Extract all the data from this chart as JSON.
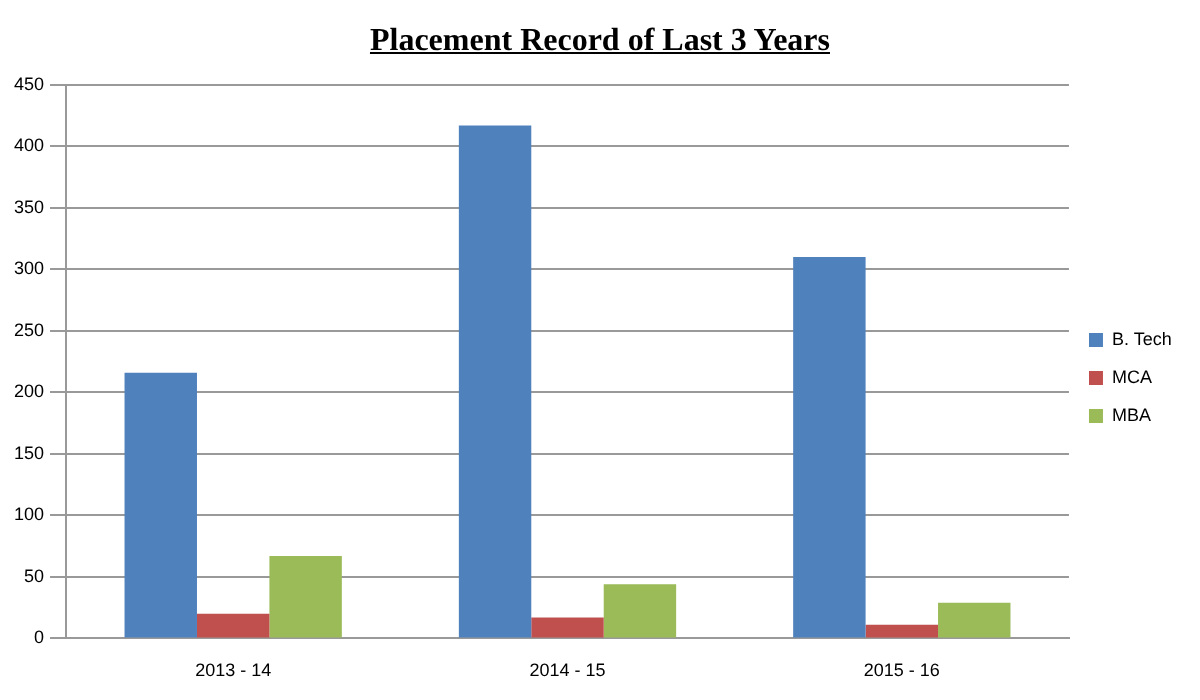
{
  "chart_data": {
    "type": "bar",
    "title": "Placement Record of Last 3 Years",
    "categories": [
      "2013 - 14",
      "2014 - 15",
      "2015 - 16"
    ],
    "series": [
      {
        "name": "B. Tech",
        "color": "#4f81bd",
        "values": [
          216,
          417,
          310
        ]
      },
      {
        "name": "MCA",
        "color": "#c0504d",
        "values": [
          20,
          17,
          11
        ]
      },
      {
        "name": "MBA",
        "color": "#9bbb59",
        "values": [
          67,
          44,
          29
        ]
      }
    ],
    "ylim": [
      0,
      450
    ],
    "yticks": [
      0,
      50,
      100,
      150,
      200,
      250,
      300,
      350,
      400,
      450
    ],
    "grid": "y",
    "legend": "right"
  }
}
